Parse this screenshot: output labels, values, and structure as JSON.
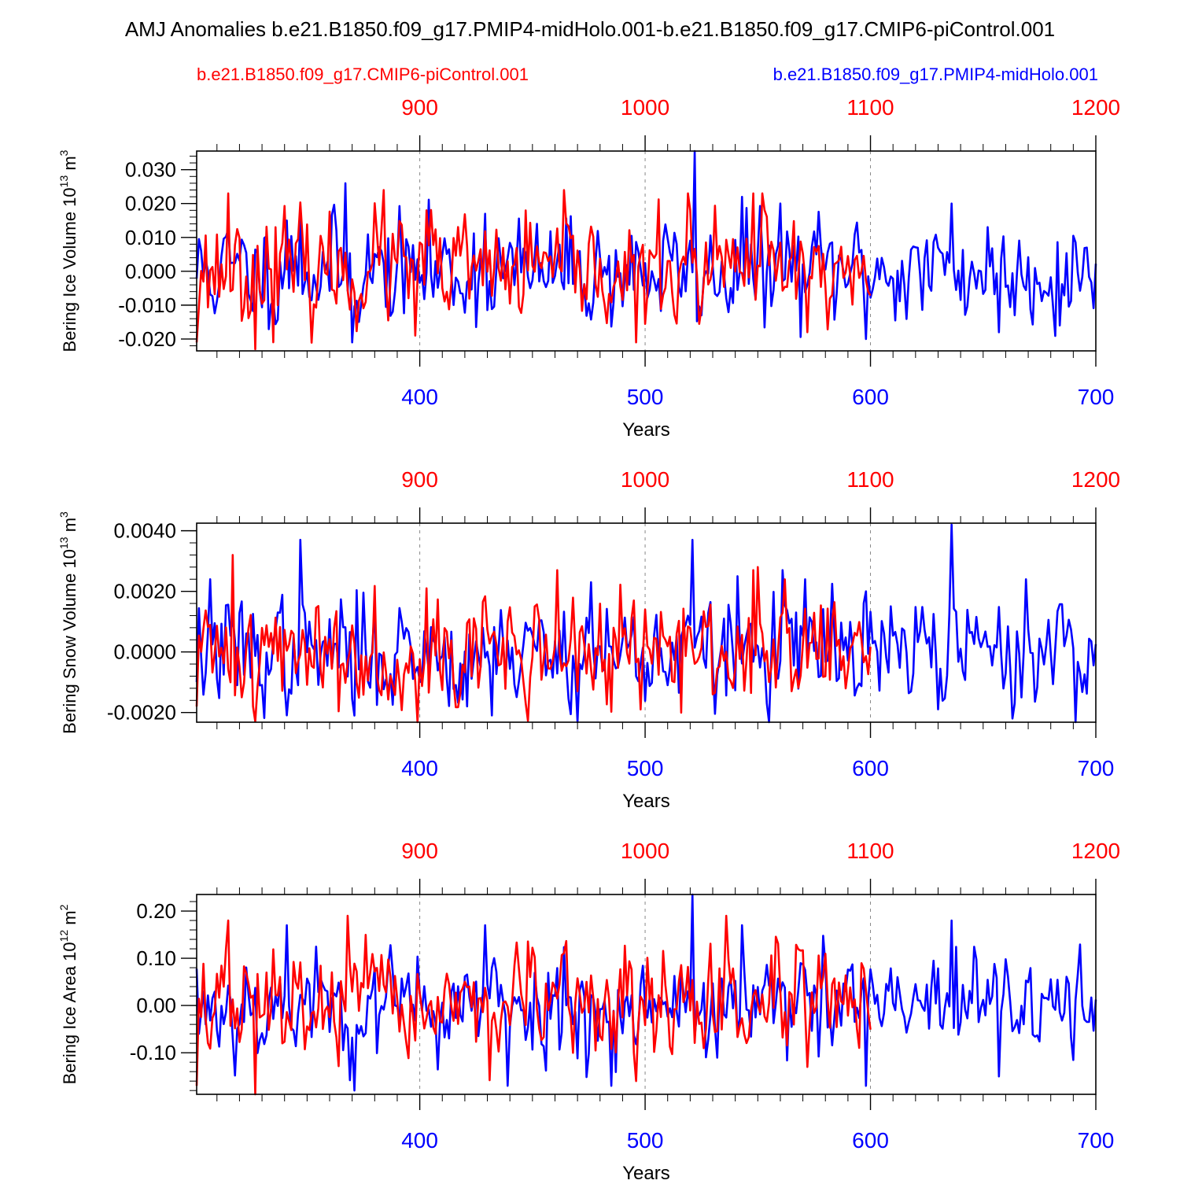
{
  "title": "AMJ Anomalies b.e21.B1850.f09_g17.PMIP4-midHolo.001-b.e21.B1850.f09_g17.CMIP6-piControl.001",
  "legend": {
    "red_label": "b.e21.B1850.f09_g17.CMIP6-piControl.001",
    "blue_label": "b.e21.B1850.f09_g17.PMIP4-midHolo.001"
  },
  "colors": {
    "red": "#ff0000",
    "blue": "#0000ff",
    "axis": "#000000",
    "grid": "#888888"
  },
  "chart_data": [
    {
      "type": "line",
      "title": "",
      "ylabel_main": "Bering Ice Volume 10",
      "ylabel_exp": "13",
      "ylabel_unit": " m",
      "ylabel_unit_exp": "3",
      "xlabel": "Years",
      "ylim": [
        -0.0235,
        0.0355
      ],
      "yticks": [
        -0.02,
        -0.01,
        0.0,
        0.01,
        0.02,
        0.03
      ],
      "ytick_labels": [
        "-0.020",
        "-0.010",
        "0.000",
        "0.010",
        "0.020",
        "0.030"
      ],
      "yminor_step": 0.002,
      "bottom_axis": {
        "range": [
          301,
          700
        ],
        "ticks": [
          400,
          500,
          600,
          700
        ],
        "labels": [
          "400",
          "500",
          "600",
          "700"
        ]
      },
      "top_axis": {
        "range": [
          801,
          1200
        ],
        "ticks": [
          900,
          1000,
          1100,
          1200
        ],
        "labels": [
          "900",
          "1000",
          "1100",
          "1200"
        ]
      },
      "grid_x": [
        400,
        500,
        600
      ],
      "series": [
        {
          "name": "b.e21.B1850.f09_g17.PMIP4-midHolo.001",
          "color": "blue",
          "x_start": 301,
          "amplitude": 0.0078,
          "seed": 11,
          "peaks": [
            [
              341,
              0.015
            ],
            [
              347,
              0.017
            ],
            [
              367,
              0.026
            ],
            [
              370,
              -0.021
            ],
            [
              429,
              0.017
            ],
            [
              452,
              0.014
            ],
            [
              522,
              0.036
            ],
            [
              525,
              -0.013
            ],
            [
              543,
              0.022
            ],
            [
              560,
              0.02
            ],
            [
              598,
              -0.02
            ],
            [
              636,
              0.02
            ],
            [
              657,
              -0.018
            ],
            [
              684,
              -0.016
            ]
          ]
        },
        {
          "name": "b.e21.B1850.f09_g17.CMIP6-piControl.001",
          "color": "red",
          "x_start": 301,
          "x_end": 600,
          "amplitude": 0.0078,
          "seed": 23,
          "peaks": [
            [
              301,
              -0.021
            ],
            [
              315,
              0.023
            ],
            [
              327,
              -0.023
            ],
            [
              336,
              0.013
            ],
            [
              384,
              0.024
            ],
            [
              398,
              -0.019
            ],
            [
              403,
              0.018
            ],
            [
              496,
              -0.021
            ],
            [
              519,
              0.023
            ],
            [
              548,
              0.023
            ],
            [
              552,
              0.023
            ],
            [
              572,
              -0.018
            ]
          ]
        }
      ]
    },
    {
      "type": "line",
      "title": "",
      "ylabel_main": "Bering Snow Volume 10",
      "ylabel_exp": "13",
      "ylabel_unit": " m",
      "ylabel_unit_exp": "3",
      "xlabel": "Years",
      "ylim": [
        -0.00232,
        0.00425
      ],
      "yticks": [
        -0.002,
        0.0,
        0.002,
        0.004
      ],
      "ytick_labels": [
        "-0.0020",
        "0.0000",
        "0.0020",
        "0.0040"
      ],
      "yminor_step": 0.0004,
      "bottom_axis": {
        "range": [
          301,
          700
        ],
        "ticks": [
          400,
          500,
          600,
          700
        ],
        "labels": [
          "400",
          "500",
          "600",
          "700"
        ]
      },
      "top_axis": {
        "range": [
          801,
          1200
        ],
        "ticks": [
          900,
          1000,
          1100,
          1200
        ],
        "labels": [
          "900",
          "1000",
          "1100",
          "1200"
        ]
      },
      "grid_x": [
        400,
        500,
        600
      ],
      "series": [
        {
          "name": "b.e21.B1850.f09_g17.PMIP4-midHolo.001",
          "color": "blue",
          "x_start": 301,
          "amplitude": 0.0009,
          "seed": 37,
          "peaks": [
            [
              307,
              0.0024
            ],
            [
              347,
              0.0037
            ],
            [
              371,
              -0.0021
            ],
            [
              421,
              -0.0018
            ],
            [
              476,
              0.0023
            ],
            [
              521,
              0.0037
            ],
            [
              541,
              0.0025
            ],
            [
              561,
              0.0027
            ],
            [
              571,
              0.0024
            ],
            [
              636,
              0.0042
            ],
            [
              663,
              -0.0022
            ],
            [
              669,
              0.0024
            ]
          ]
        },
        {
          "name": "b.e21.B1850.f09_g17.CMIP6-piControl.001",
          "color": "red",
          "x_start": 301,
          "x_end": 600,
          "amplitude": 0.0009,
          "seed": 41,
          "peaks": [
            [
              301,
              -0.0018
            ],
            [
              317,
              0.0032
            ],
            [
              327,
              -0.0023
            ],
            [
              403,
              0.0021
            ],
            [
              461,
              0.0027
            ],
            [
              498,
              -0.0019
            ],
            [
              548,
              0.0027
            ],
            [
              550,
              0.0028
            ]
          ]
        }
      ]
    },
    {
      "type": "line",
      "title": "",
      "ylabel_main": "Bering Ice Area 10",
      "ylabel_exp": "12",
      "ylabel_unit": " m",
      "ylabel_unit_exp": "2",
      "xlabel": "Years",
      "ylim": [
        -0.188,
        0.235
      ],
      "yticks": [
        -0.1,
        0.0,
        0.1,
        0.2
      ],
      "ytick_labels": [
        "-0.10",
        "0.00",
        "0.10",
        "0.20"
      ],
      "yminor_step": 0.02,
      "bottom_axis": {
        "range": [
          301,
          700
        ],
        "ticks": [
          400,
          500,
          600,
          700
        ],
        "labels": [
          "400",
          "500",
          "600",
          "700"
        ]
      },
      "top_axis": {
        "range": [
          801,
          1200
        ],
        "ticks": [
          900,
          1000,
          1100,
          1200
        ],
        "labels": [
          "900",
          "1000",
          "1100",
          "1200"
        ]
      },
      "grid_x": [
        400,
        500,
        600
      ],
      "series": [
        {
          "name": "b.e21.B1850.f09_g17.PMIP4-midHolo.001",
          "color": "blue",
          "x_start": 301,
          "amplitude": 0.055,
          "seed": 53,
          "peaks": [
            [
              341,
              0.17
            ],
            [
              371,
              -0.18
            ],
            [
              429,
              0.17
            ],
            [
              439,
              -0.17
            ],
            [
              485,
              -0.17
            ],
            [
              521,
              0.24
            ],
            [
              543,
              0.17
            ],
            [
              598,
              -0.17
            ],
            [
              636,
              0.18
            ],
            [
              657,
              -0.15
            ]
          ]
        },
        {
          "name": "b.e21.B1850.f09_g17.CMIP6-piControl.001",
          "color": "red",
          "x_start": 301,
          "x_end": 600,
          "amplitude": 0.055,
          "seed": 67,
          "peaks": [
            [
              301,
              -0.17
            ],
            [
              315,
              0.18
            ],
            [
              327,
              -0.19
            ],
            [
              368,
              0.19
            ],
            [
              496,
              -0.16
            ],
            [
              536,
              0.19
            ],
            [
              572,
              -0.13
            ]
          ]
        }
      ]
    }
  ]
}
